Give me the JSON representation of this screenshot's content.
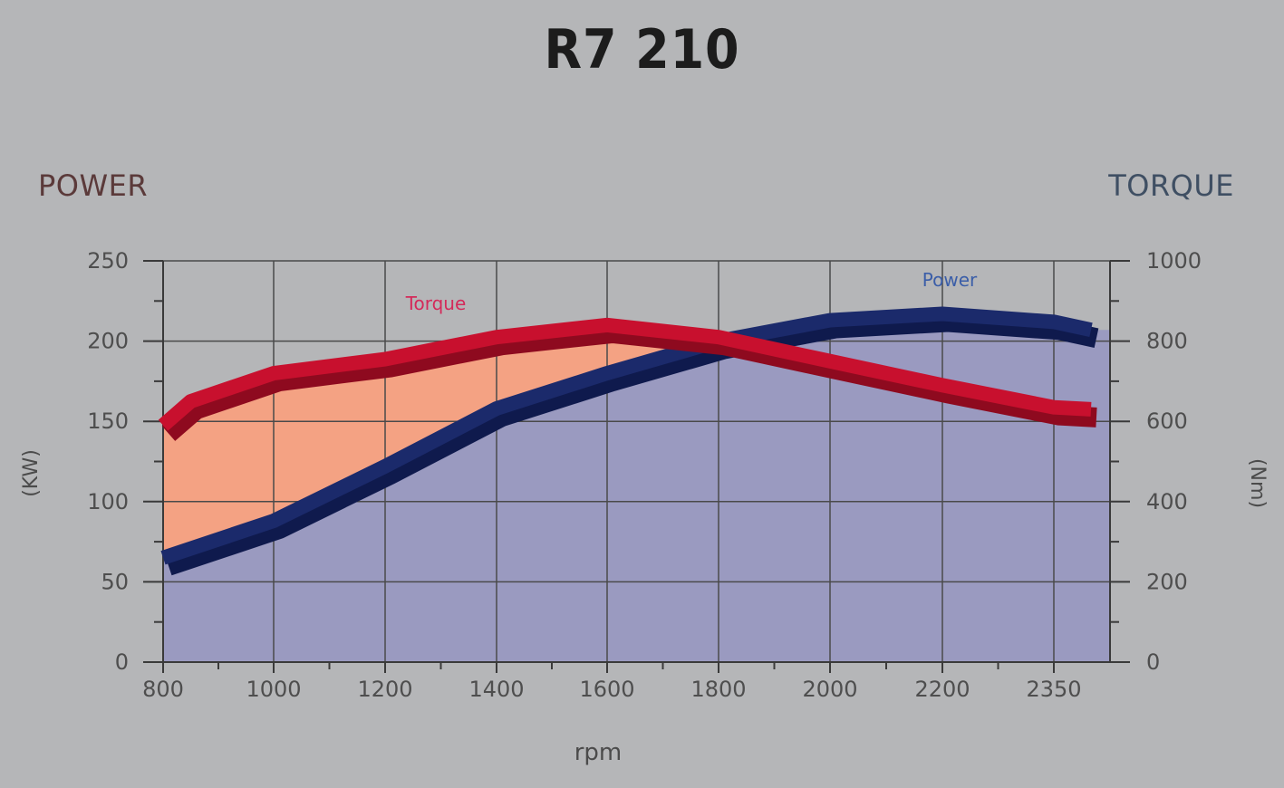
{
  "title": "R7 210",
  "left_axis_header": "POWER",
  "right_axis_header": "TORQUE",
  "left_axis_unit": "(KW)",
  "right_axis_unit": "(Nm)",
  "chart_data": {
    "type": "line",
    "title": "R7 210",
    "xlabel": "rpm",
    "ylabel": "(KW)",
    "y2label": "(Nm)",
    "x_tick_labels": [
      "800",
      "1000",
      "1200",
      "1400",
      "1600",
      "1800",
      "2000",
      "2200",
      "2350"
    ],
    "y_ticks": [
      0,
      50,
      100,
      150,
      200,
      250
    ],
    "y2_ticks": [
      0,
      200,
      400,
      600,
      800,
      1000
    ],
    "ylim": [
      0,
      250
    ],
    "y2lim": [
      0,
      1000
    ],
    "grid": true,
    "series": [
      {
        "name": "Torque",
        "axis": "right",
        "color": "#c8102e",
        "fill_color": "#f4a283",
        "x": [
          800,
          850,
          1000,
          1200,
          1400,
          1600,
          1800,
          2000,
          2200,
          2350,
          2400
        ],
        "values": [
          590,
          650,
          720,
          755,
          810,
          840,
          810,
          750,
          690,
          635,
          630
        ]
      },
      {
        "name": "Power",
        "axis": "left",
        "color": "#1b2a6b",
        "fill_color": "#9a9ac0",
        "x": [
          800,
          1000,
          1200,
          1400,
          1600,
          1800,
          2000,
          2200,
          2350,
          2400
        ],
        "values": [
          65,
          88,
          122,
          158,
          180,
          200,
          213,
          217,
          212,
          207
        ]
      }
    ]
  }
}
